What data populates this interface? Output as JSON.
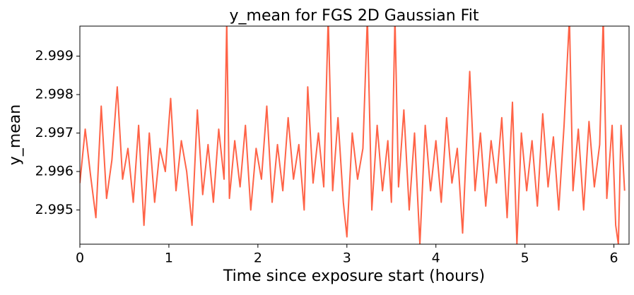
{
  "chart_data": {
    "type": "line",
    "title": "y_mean for FGS 2D Gaussian Fit",
    "x_label": "Time since exposure start (hours)",
    "y_label": "y_mean",
    "xlim": [
      0,
      6.17
    ],
    "ylim": [
      2.99411,
      2.99978
    ],
    "xticks": [
      0,
      1,
      2,
      3,
      4,
      5,
      6
    ],
    "yticks": [
      2.995,
      2.996,
      2.997,
      2.998,
      2.999
    ],
    "series": [
      {
        "name": "y_mean",
        "color": "#ff6347",
        "x": [
          0,
          0.06,
          0.12,
          0.18,
          0.24,
          0.3,
          0.36,
          0.42,
          0.48,
          0.54,
          0.6,
          0.66,
          0.72,
          0.78,
          0.84,
          0.9,
          0.96,
          1.02,
          1.08,
          1.14,
          1.2,
          1.26,
          1.32,
          1.38,
          1.44,
          1.5,
          1.56,
          1.62,
          1.65,
          1.68,
          1.74,
          1.8,
          1.86,
          1.92,
          1.98,
          2.04,
          2.1,
          2.16,
          2.22,
          2.28,
          2.34,
          2.4,
          2.46,
          2.52,
          2.56,
          2.62,
          2.68,
          2.74,
          2.79,
          2.84,
          2.9,
          2.96,
          3.0,
          3.06,
          3.12,
          3.18,
          3.23,
          3.28,
          3.34,
          3.4,
          3.46,
          3.5,
          3.54,
          3.58,
          3.64,
          3.7,
          3.76,
          3.82,
          3.88,
          3.94,
          4.0,
          4.06,
          4.12,
          4.18,
          4.24,
          4.3,
          4.38,
          4.44,
          4.5,
          4.56,
          4.62,
          4.68,
          4.74,
          4.8,
          4.86,
          4.91,
          4.96,
          5.02,
          5.08,
          5.14,
          5.2,
          5.26,
          5.32,
          5.38,
          5.44,
          5.5,
          5.54,
          5.6,
          5.66,
          5.72,
          5.78,
          5.84,
          5.88,
          5.92,
          5.98,
          6.02,
          6.05,
          6.08,
          6.12
        ],
        "values": [
          2.9957,
          2.9971,
          2.9959,
          2.9948,
          2.9977,
          2.9953,
          2.9963,
          2.9982,
          2.9958,
          2.9966,
          2.9952,
          2.9972,
          2.9946,
          2.997,
          2.9952,
          2.9966,
          2.996,
          2.9979,
          2.9955,
          2.9968,
          2.996,
          2.9946,
          2.9976,
          2.9954,
          2.9967,
          2.9952,
          2.9971,
          2.9958,
          2.9999,
          2.9953,
          2.9968,
          2.9956,
          2.9972,
          2.995,
          2.9966,
          2.9958,
          2.9977,
          2.9952,
          2.9967,
          2.9955,
          2.9974,
          2.9958,
          2.9967,
          2.995,
          2.9982,
          2.9957,
          2.997,
          2.9956,
          3.0,
          2.9955,
          2.9974,
          2.9952,
          2.9943,
          2.997,
          2.9958,
          2.9966,
          3.0,
          2.995,
          2.9972,
          2.9955,
          2.9968,
          2.9952,
          3.0,
          2.9956,
          2.9976,
          2.995,
          2.997,
          2.9941,
          2.9972,
          2.9955,
          2.9968,
          2.9952,
          2.9974,
          2.9957,
          2.9966,
          2.9944,
          2.9986,
          2.9955,
          2.997,
          2.9951,
          2.9968,
          2.9957,
          2.9974,
          2.9948,
          2.9978,
          2.9941,
          2.997,
          2.9955,
          2.9968,
          2.9951,
          2.9975,
          2.9956,
          2.9969,
          2.995,
          2.9972,
          3.0,
          2.9955,
          2.9971,
          2.995,
          2.9973,
          2.9956,
          2.9967,
          3.0,
          2.9953,
          2.9972,
          2.9946,
          2.9941,
          2.9972,
          2.9955
        ]
      }
    ]
  }
}
